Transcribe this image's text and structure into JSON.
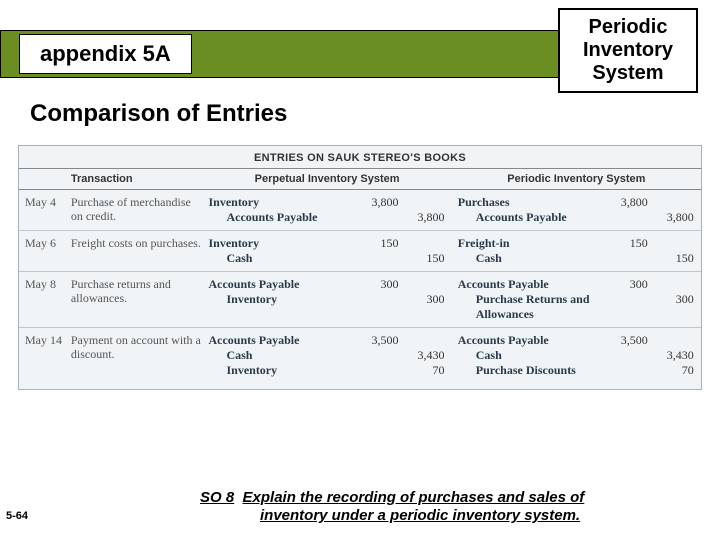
{
  "header": {
    "title": "appendix 5A",
    "callout_line1": "Periodic",
    "callout_line2": "Inventory",
    "callout_line3": "System",
    "bar_color": "#6b8e23"
  },
  "subtitle": "Comparison of Entries",
  "table": {
    "caption": "ENTRIES ON SAUK STEREO'S BOOKS",
    "columns": {
      "txn": "Transaction",
      "perp": "Perpetual Inventory System",
      "peri": "Periodic Inventory System"
    },
    "background": "#f0f4f7",
    "rows": [
      {
        "date": "May  4",
        "txn": "Purchase of merchandise on credit.",
        "perp": [
          {
            "acct": "Inventory",
            "dr": "3,800",
            "cr": ""
          },
          {
            "acct": "Accounts Payable",
            "dr": "",
            "cr": "3,800"
          }
        ],
        "peri": [
          {
            "acct": "Purchases",
            "dr": "3,800",
            "cr": ""
          },
          {
            "acct": "Accounts Payable",
            "dr": "",
            "cr": "3,800"
          }
        ]
      },
      {
        "date": "May  6",
        "txn": "Freight costs on purchases.",
        "perp": [
          {
            "acct": "Inventory",
            "dr": "150",
            "cr": ""
          },
          {
            "acct": "Cash",
            "dr": "",
            "cr": "150"
          }
        ],
        "peri": [
          {
            "acct": "Freight-in",
            "dr": "150",
            "cr": ""
          },
          {
            "acct": "Cash",
            "dr": "",
            "cr": "150"
          }
        ]
      },
      {
        "date": "May  8",
        "txn": "Purchase returns and allowances.",
        "perp": [
          {
            "acct": "Accounts Payable",
            "dr": "300",
            "cr": ""
          },
          {
            "acct": "Inventory",
            "dr": "",
            "cr": "300"
          }
        ],
        "peri": [
          {
            "acct": "Accounts Payable",
            "dr": "300",
            "cr": ""
          },
          {
            "acct": "Purchase Returns and Allowances",
            "dr": "",
            "cr": "300"
          }
        ]
      },
      {
        "date": "May 14",
        "txn": "Payment on account with a discount.",
        "perp": [
          {
            "acct": "Accounts Payable",
            "dr": "3,500",
            "cr": ""
          },
          {
            "acct": "Cash",
            "dr": "",
            "cr": "3,430"
          },
          {
            "acct": "Inventory",
            "dr": "",
            "cr": "70"
          }
        ],
        "peri": [
          {
            "acct": "Accounts Payable",
            "dr": "3,500",
            "cr": ""
          },
          {
            "acct": "Cash",
            "dr": "",
            "cr": "3,430"
          },
          {
            "acct": "Purchase Discounts",
            "dr": "",
            "cr": "70"
          }
        ]
      }
    ]
  },
  "footer": {
    "page": "5-64",
    "so_label": "SO 8",
    "so_text1": "Explain the recording of purchases and sales of",
    "so_text2": "inventory under a periodic inventory system."
  }
}
